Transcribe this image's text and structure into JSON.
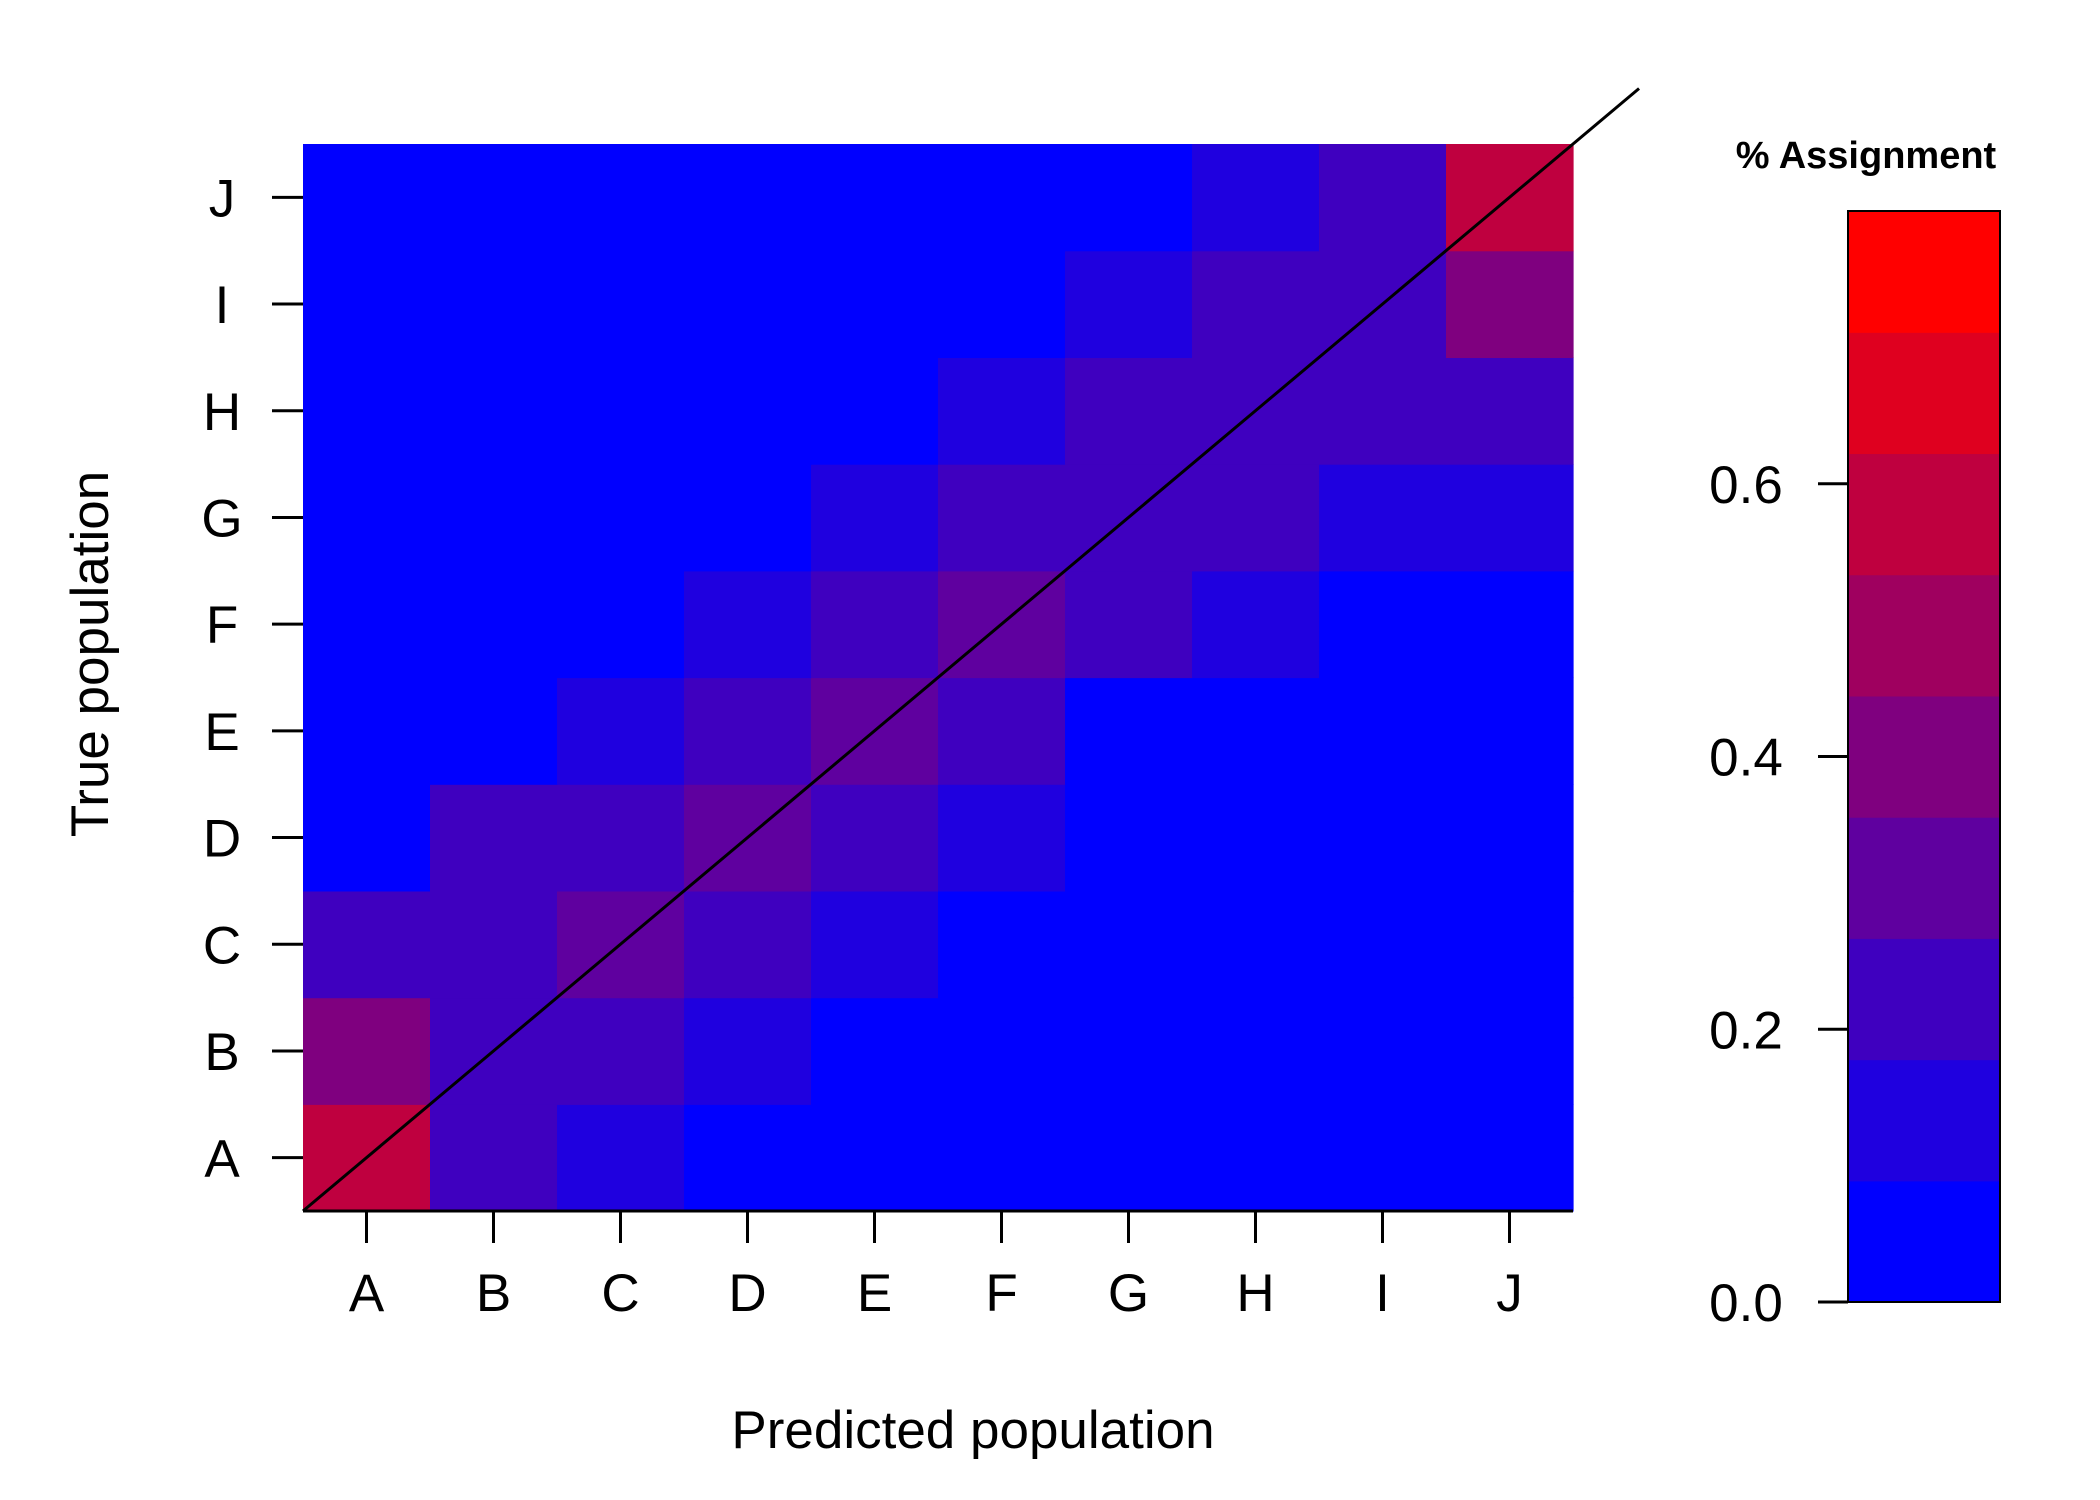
{
  "chart_data": {
    "type": "heatmap",
    "xlabel": "Predicted population",
    "ylabel": "True population",
    "x_categories": [
      "A",
      "B",
      "C",
      "D",
      "E",
      "F",
      "G",
      "H",
      "I",
      "J"
    ],
    "y_categories": [
      "A",
      "B",
      "C",
      "D",
      "E",
      "F",
      "G",
      "H",
      "I",
      "J"
    ],
    "values": [
      [
        0.65,
        0.25,
        0.15,
        0.05,
        0.05,
        0.05,
        0.05,
        0.05,
        0.05,
        0.05
      ],
      [
        0.45,
        0.25,
        0.25,
        0.15,
        0.05,
        0.05,
        0.05,
        0.05,
        0.05,
        0.05
      ],
      [
        0.25,
        0.25,
        0.35,
        0.25,
        0.15,
        0.05,
        0.05,
        0.05,
        0.05,
        0.05
      ],
      [
        0.05,
        0.25,
        0.25,
        0.35,
        0.25,
        0.15,
        0.05,
        0.05,
        0.05,
        0.05
      ],
      [
        0.05,
        0.05,
        0.15,
        0.25,
        0.35,
        0.25,
        0.05,
        0.05,
        0.05,
        0.05
      ],
      [
        0.05,
        0.05,
        0.05,
        0.15,
        0.25,
        0.35,
        0.25,
        0.15,
        0.05,
        0.05
      ],
      [
        0.05,
        0.05,
        0.05,
        0.05,
        0.15,
        0.25,
        0.25,
        0.25,
        0.15,
        0.15
      ],
      [
        0.05,
        0.05,
        0.05,
        0.05,
        0.05,
        0.15,
        0.25,
        0.25,
        0.25,
        0.25
      ],
      [
        0.05,
        0.05,
        0.05,
        0.05,
        0.05,
        0.05,
        0.15,
        0.25,
        0.25,
        0.45
      ],
      [
        0.05,
        0.05,
        0.05,
        0.05,
        0.05,
        0.05,
        0.05,
        0.15,
        0.25,
        0.65
      ]
    ],
    "diagonal_line": true,
    "legend": {
      "title": "% Assignment",
      "bins": [
        0.0,
        0.1,
        0.2,
        0.3,
        0.4,
        0.5,
        0.6,
        0.7,
        0.8
      ],
      "colors": [
        "#0000FF",
        "#1F00DF",
        "#3F00BF",
        "#5F009F",
        "#7F007F",
        "#9F005F",
        "#BF003F",
        "#DF001F",
        "#FF0000"
      ],
      "ticks": [
        "0.0",
        "0.2",
        "0.4",
        "0.6"
      ],
      "placement": "right"
    }
  }
}
